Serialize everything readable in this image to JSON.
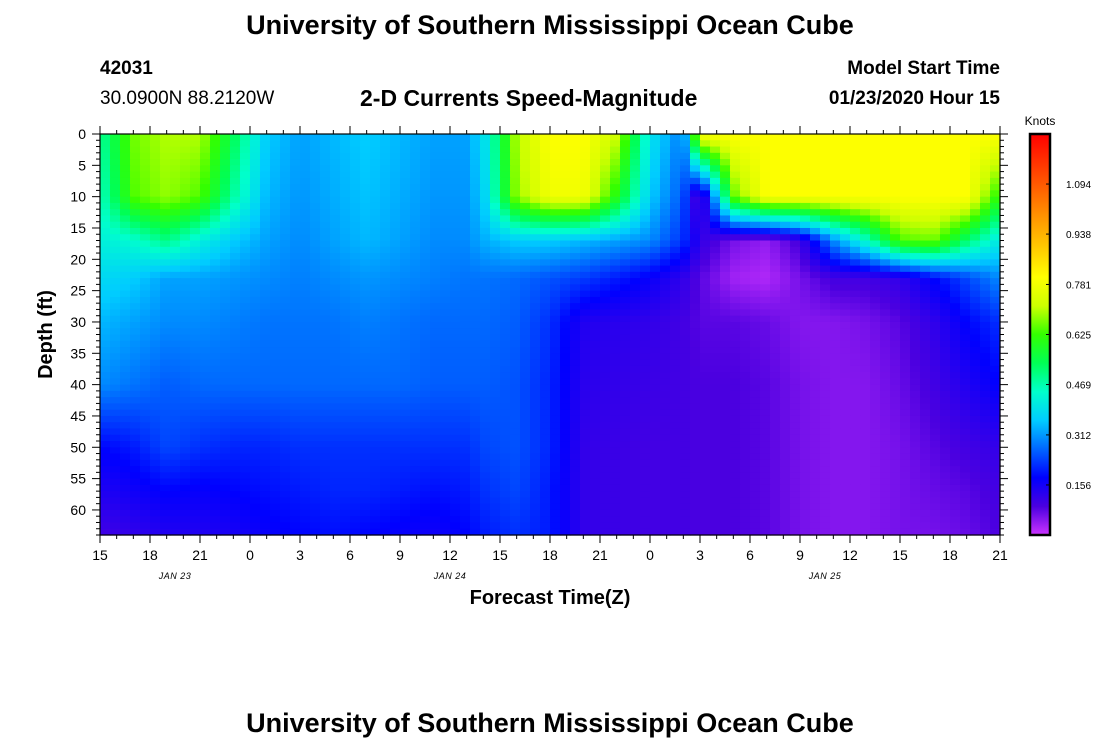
{
  "header": {
    "title": "University of Southern Mississippi Ocean Cube",
    "station_id": "42031",
    "location": "30.0900N 88.2120W",
    "plot_title": "2-D Currents Speed-Magnitude",
    "model_label": "Model Start Time",
    "model_time": "01/23/2020 Hour 15"
  },
  "footer": {
    "title": "University of Southern Mississippi Ocean Cube"
  },
  "colors": {
    "colormap": [
      "#cc33ff",
      "#4b00e0",
      "#0000ff",
      "#0066ff",
      "#00ccff",
      "#00ffcc",
      "#00ff55",
      "#33ff00",
      "#ccff00",
      "#ffff00",
      "#ffcc00",
      "#ff9900",
      "#ff6600",
      "#ff3300",
      "#ff0000"
    ],
    "axis": "#000000"
  },
  "chart_data": {
    "type": "heatmap",
    "title": "2-D Currents Speed-Magnitude",
    "xlabel": "Forecast Time(Z)",
    "ylabel": "Depth (ft)",
    "x_ticks": [
      {
        "hours": 0,
        "label": "15"
      },
      {
        "hours": 3,
        "label": "18"
      },
      {
        "hours": 6,
        "label": "21"
      },
      {
        "hours": 9,
        "label": "0"
      },
      {
        "hours": 12,
        "label": "3"
      },
      {
        "hours": 15,
        "label": "6"
      },
      {
        "hours": 18,
        "label": "9"
      },
      {
        "hours": 21,
        "label": "12"
      },
      {
        "hours": 24,
        "label": "15"
      },
      {
        "hours": 27,
        "label": "18"
      },
      {
        "hours": 30,
        "label": "21"
      },
      {
        "hours": 33,
        "label": "0"
      },
      {
        "hours": 36,
        "label": "3"
      },
      {
        "hours": 39,
        "label": "6"
      },
      {
        "hours": 42,
        "label": "9"
      },
      {
        "hours": 45,
        "label": "12"
      },
      {
        "hours": 48,
        "label": "15"
      },
      {
        "hours": 51,
        "label": "18"
      },
      {
        "hours": 54,
        "label": "21"
      }
    ],
    "date_labels": [
      {
        "hours": 4.5,
        "label": "JAN 23"
      },
      {
        "hours": 21,
        "label": "JAN 24"
      },
      {
        "hours": 43.5,
        "label": "JAN 25"
      }
    ],
    "x_range_hours": [
      0,
      54
    ],
    "y_ticks": [
      0,
      5,
      10,
      15,
      20,
      25,
      30,
      35,
      40,
      45,
      50,
      55,
      60
    ],
    "y_range": [
      0,
      64
    ],
    "colorbar": {
      "title": "Knots",
      "range": [
        0,
        1.25
      ],
      "tick_values": [
        0.156,
        0.312,
        0.469,
        0.625,
        0.781,
        0.938,
        1.094
      ],
      "tick_labels": [
        "0.156",
        "0.312",
        "0.469",
        "0.625",
        "0.781",
        "0.938",
        "1.094"
      ]
    },
    "grid_depths": [
      0,
      10,
      17,
      23,
      30,
      40,
      50,
      57,
      64
    ],
    "grid_times_hours": [
      0,
      2,
      4,
      6,
      8,
      10,
      12,
      14,
      16,
      18,
      20,
      22,
      23,
      25,
      27,
      29,
      31,
      33,
      35,
      36,
      38,
      40,
      42,
      44,
      46,
      48,
      50,
      52,
      54
    ],
    "speed_grid": [
      [
        0.48,
        0.66,
        0.7,
        0.7,
        0.54,
        0.36,
        0.32,
        0.34,
        0.36,
        0.34,
        0.32,
        0.32,
        0.38,
        0.7,
        0.8,
        0.8,
        0.72,
        0.4,
        0.28,
        0.8,
        0.8,
        0.8,
        0.8,
        0.8,
        0.8,
        0.8,
        0.8,
        0.8,
        0.8
      ],
      [
        0.45,
        0.64,
        0.68,
        0.64,
        0.48,
        0.34,
        0.31,
        0.33,
        0.35,
        0.33,
        0.31,
        0.31,
        0.36,
        0.68,
        0.78,
        0.78,
        0.6,
        0.36,
        0.25,
        0.06,
        0.65,
        0.8,
        0.8,
        0.8,
        0.8,
        0.8,
        0.8,
        0.8,
        0.6
      ],
      [
        0.42,
        0.44,
        0.5,
        0.42,
        0.36,
        0.32,
        0.3,
        0.32,
        0.34,
        0.32,
        0.3,
        0.3,
        0.33,
        0.36,
        0.36,
        0.34,
        0.32,
        0.3,
        0.22,
        0.12,
        0.06,
        0.04,
        0.1,
        0.3,
        0.45,
        0.64,
        0.66,
        0.52,
        0.4
      ],
      [
        0.38,
        0.36,
        0.32,
        0.32,
        0.31,
        0.3,
        0.29,
        0.3,
        0.31,
        0.3,
        0.29,
        0.28,
        0.28,
        0.27,
        0.25,
        0.23,
        0.2,
        0.17,
        0.12,
        0.08,
        0.03,
        0.02,
        0.06,
        0.1,
        0.1,
        0.12,
        0.18,
        0.24,
        0.3
      ],
      [
        0.34,
        0.32,
        0.3,
        0.3,
        0.29,
        0.28,
        0.28,
        0.28,
        0.29,
        0.28,
        0.27,
        0.27,
        0.27,
        0.26,
        0.22,
        0.14,
        0.13,
        0.12,
        0.1,
        0.08,
        0.08,
        0.07,
        0.05,
        0.05,
        0.06,
        0.08,
        0.12,
        0.18,
        0.22
      ],
      [
        0.3,
        0.28,
        0.26,
        0.27,
        0.27,
        0.27,
        0.27,
        0.27,
        0.27,
        0.27,
        0.26,
        0.26,
        0.26,
        0.25,
        0.21,
        0.13,
        0.12,
        0.11,
        0.1,
        0.09,
        0.09,
        0.08,
        0.06,
        0.05,
        0.05,
        0.07,
        0.1,
        0.14,
        0.18
      ],
      [
        0.18,
        0.2,
        0.24,
        0.22,
        0.21,
        0.21,
        0.22,
        0.22,
        0.22,
        0.22,
        0.22,
        0.22,
        0.24,
        0.25,
        0.21,
        0.12,
        0.11,
        0.1,
        0.1,
        0.09,
        0.09,
        0.08,
        0.06,
        0.05,
        0.05,
        0.06,
        0.08,
        0.1,
        0.12
      ],
      [
        0.14,
        0.16,
        0.18,
        0.17,
        0.18,
        0.19,
        0.2,
        0.21,
        0.21,
        0.2,
        0.19,
        0.2,
        0.22,
        0.24,
        0.2,
        0.12,
        0.11,
        0.1,
        0.1,
        0.09,
        0.09,
        0.08,
        0.06,
        0.05,
        0.05,
        0.06,
        0.07,
        0.08,
        0.1
      ],
      [
        0.1,
        0.12,
        0.14,
        0.14,
        0.15,
        0.17,
        0.18,
        0.19,
        0.18,
        0.17,
        0.16,
        0.18,
        0.2,
        0.22,
        0.2,
        0.12,
        0.11,
        0.1,
        0.1,
        0.09,
        0.09,
        0.08,
        0.06,
        0.05,
        0.05,
        0.06,
        0.06,
        0.07,
        0.09
      ]
    ]
  }
}
